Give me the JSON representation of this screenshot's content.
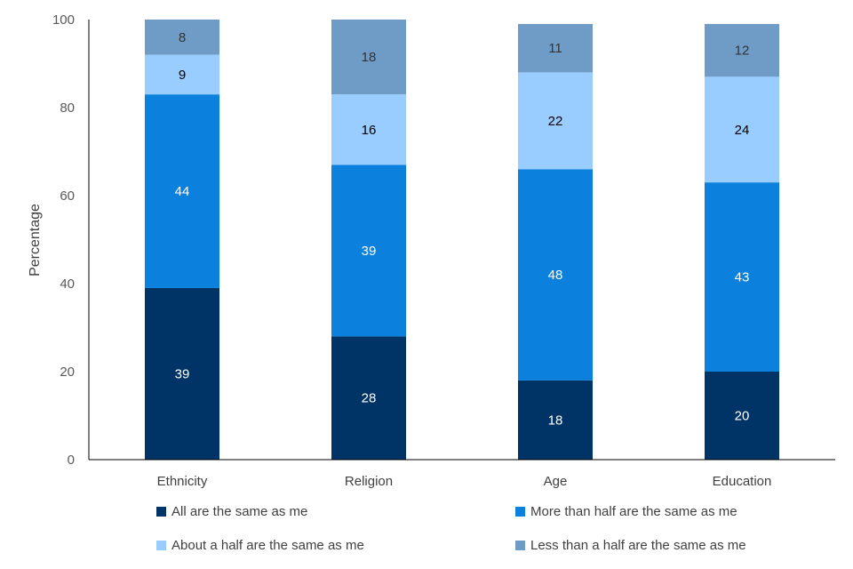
{
  "chart_data": {
    "type": "bar",
    "stacked": true,
    "title": "",
    "xlabel": "",
    "ylabel": "Percentage",
    "ylim": [
      0,
      100
    ],
    "yticks": [
      0,
      20,
      40,
      60,
      80,
      100
    ],
    "grid": false,
    "legend_position": "bottom",
    "categories": [
      "Ethnicity",
      "Religion",
      "Age",
      "Education"
    ],
    "series": [
      {
        "name": "All are the same as me",
        "color": "#003366",
        "label_color": "#ffffff",
        "values": [
          39,
          28,
          18,
          20
        ]
      },
      {
        "name": "More than half are the same as me",
        "color": "#0b80dc",
        "label_color": "#ffffff",
        "values": [
          44,
          39,
          48,
          43
        ]
      },
      {
        "name": "About a half are the same as me",
        "color": "#99ccff",
        "label_color": "#000000",
        "values": [
          9,
          16,
          22,
          24
        ]
      },
      {
        "name": "Less than a half are the same as me",
        "color": "#6f9cc7",
        "label_color": "#333333",
        "values": [
          8,
          18,
          11,
          12
        ]
      }
    ]
  }
}
